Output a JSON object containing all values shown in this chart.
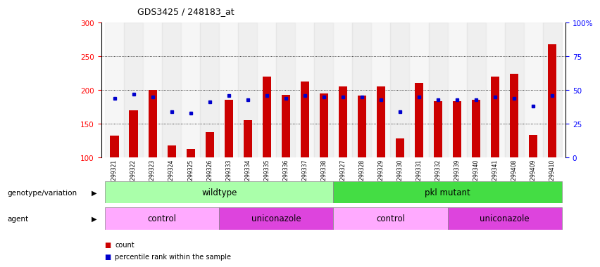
{
  "title": "GDS3425 / 248183_at",
  "samples": [
    "GSM299321",
    "GSM299322",
    "GSM299323",
    "GSM299324",
    "GSM299325",
    "GSM299326",
    "GSM299333",
    "GSM299334",
    "GSM299335",
    "GSM299336",
    "GSM299337",
    "GSM299338",
    "GSM299327",
    "GSM299328",
    "GSM299329",
    "GSM299330",
    "GSM299331",
    "GSM299332",
    "GSM299339",
    "GSM299340",
    "GSM299341",
    "GSM299408",
    "GSM299409",
    "GSM299410"
  ],
  "count_values": [
    132,
    170,
    200,
    118,
    113,
    138,
    185,
    155,
    220,
    193,
    213,
    195,
    205,
    192,
    205,
    128,
    210,
    183,
    183,
    185,
    220,
    224,
    133,
    268
  ],
  "percentile_values": [
    44,
    47,
    45,
    34,
    33,
    41,
    46,
    43,
    46,
    44,
    46,
    45,
    45,
    45,
    43,
    34,
    45,
    43,
    43,
    43,
    45,
    44,
    38,
    46
  ],
  "bar_color": "#cc0000",
  "dot_color": "#0000cc",
  "ymin": 100,
  "ymax": 300,
  "yticks_left": [
    100,
    150,
    200,
    250,
    300
  ],
  "yticks_right": [
    0,
    25,
    50,
    75,
    100
  ],
  "grid_values": [
    150,
    200,
    250
  ],
  "genotype_groups": [
    {
      "label": "wildtype",
      "start": 0,
      "end": 11,
      "color": "#aaffaa"
    },
    {
      "label": "pkl mutant",
      "start": 12,
      "end": 23,
      "color": "#44dd44"
    }
  ],
  "agent_groups": [
    {
      "label": "control",
      "start": 0,
      "end": 5,
      "color": "#ffaaff"
    },
    {
      "label": "uniconazole",
      "start": 6,
      "end": 11,
      "color": "#dd44dd"
    },
    {
      "label": "control",
      "start": 12,
      "end": 17,
      "color": "#ffaaff"
    },
    {
      "label": "uniconazole",
      "start": 18,
      "end": 23,
      "color": "#dd44dd"
    }
  ],
  "background_color": "#ffffff"
}
